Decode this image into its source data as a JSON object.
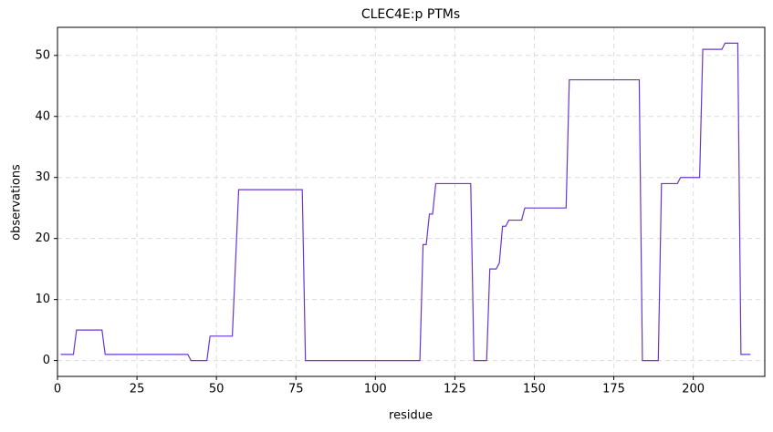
{
  "chart_data": {
    "type": "line",
    "title": "CLEC4E:p PTMs",
    "x_label": "residue",
    "y_label": "observations",
    "x": [
      1,
      5,
      6,
      14,
      15,
      41,
      42,
      47,
      48,
      55,
      57,
      77,
      78,
      114,
      115,
      116,
      117,
      118,
      119,
      130,
      131,
      135,
      136,
      138,
      139,
      140,
      141,
      142,
      146,
      147,
      160,
      161,
      183,
      184,
      189,
      190,
      195,
      196,
      202,
      203,
      209,
      210,
      214,
      215,
      218
    ],
    "series": [
      {
        "name": "observations",
        "color": "#6a35d4",
        "values": [
          1,
          1,
          5,
          5,
          1,
          1,
          0,
          0,
          4,
          4,
          28,
          28,
          0,
          0,
          19,
          19,
          24,
          24,
          29,
          29,
          0,
          0,
          15,
          15,
          16,
          22,
          22,
          23,
          23,
          25,
          25,
          46,
          46,
          0,
          0,
          29,
          29,
          30,
          30,
          51,
          51,
          52,
          52,
          1,
          1
        ]
      }
    ],
    "xlim": [
      0,
      222.5
    ],
    "ylim": [
      -2.6,
      54.6
    ],
    "xticks": [
      0,
      25,
      50,
      75,
      100,
      125,
      150,
      175,
      200
    ],
    "yticks": [
      0,
      10,
      20,
      30,
      40,
      50
    ],
    "grid": true
  }
}
